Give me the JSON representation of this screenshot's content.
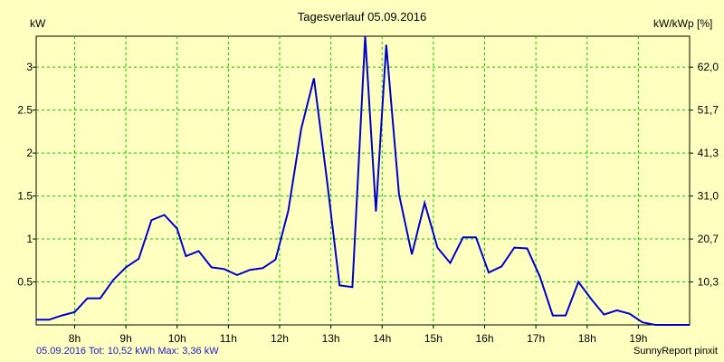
{
  "chart_data": {
    "type": "line",
    "title": "Tagesverlauf 05.09.2016",
    "ylabel_left": "kW",
    "ylabel_right": "kW/kWp [%]",
    "footer_left": "05.09.2016 Tot: 10,52 kWh Max: 3,36 kW",
    "footer_right": "SunnyReport pinxit",
    "xlim": [
      7.25,
      20.0
    ],
    "ylim": [
      0,
      3.36
    ],
    "x_ticks": [
      8,
      9,
      10,
      11,
      12,
      13,
      14,
      15,
      16,
      17,
      18,
      19
    ],
    "x_tick_labels": [
      "8h",
      "9h",
      "10h",
      "11h",
      "12h",
      "13h",
      "14h",
      "15h",
      "16h",
      "17h",
      "18h",
      "19h"
    ],
    "y_ticks_left": [
      0.5,
      1,
      1.5,
      2,
      2.5,
      3
    ],
    "y_tick_labels_left": [
      "0.5",
      "1",
      "1.5",
      "2",
      "2.5",
      "3"
    ],
    "y_ticks_right": [
      10.3,
      20.7,
      31.0,
      41.3,
      51.7,
      62.0
    ],
    "y_tick_labels_right": [
      "10,3",
      "20,7",
      "31,0",
      "41,3",
      "51,7",
      "62,0"
    ],
    "grid": true,
    "colors": {
      "background": "#ffffc0",
      "grid": "#00cc00",
      "line": "#0000cc",
      "footer": "#1a1acc"
    },
    "series": [
      {
        "x": [
          7.25,
          7.5,
          7.75,
          8.0,
          8.25,
          8.5,
          8.75,
          9.0,
          9.25,
          9.5,
          9.75,
          10.0,
          10.17,
          10.42,
          10.67,
          10.92,
          11.17,
          11.42,
          11.67,
          11.92,
          12.17,
          12.42,
          12.67,
          12.92,
          13.17,
          13.42,
          13.67,
          13.88,
          14.08,
          14.33,
          14.58,
          14.83,
          15.08,
          15.33,
          15.58,
          15.83,
          16.08,
          16.33,
          16.58,
          16.83,
          17.08,
          17.33,
          17.58,
          17.83,
          18.08,
          18.33,
          18.58,
          18.83,
          19.08,
          19.33,
          19.58,
          20.0
        ],
        "y": [
          0.06,
          0.06,
          0.11,
          0.15,
          0.31,
          0.31,
          0.52,
          0.67,
          0.77,
          1.22,
          1.28,
          1.12,
          0.8,
          0.86,
          0.67,
          0.65,
          0.58,
          0.64,
          0.66,
          0.76,
          1.33,
          2.28,
          2.87,
          1.7,
          0.46,
          0.44,
          3.36,
          1.32,
          3.26,
          1.52,
          0.82,
          1.42,
          0.9,
          0.72,
          1.02,
          1.02,
          0.61,
          0.68,
          0.9,
          0.89,
          0.56,
          0.11,
          0.11,
          0.5,
          0.3,
          0.12,
          0.17,
          0.13,
          0.03,
          0.0,
          0.0,
          0.0
        ]
      }
    ]
  }
}
